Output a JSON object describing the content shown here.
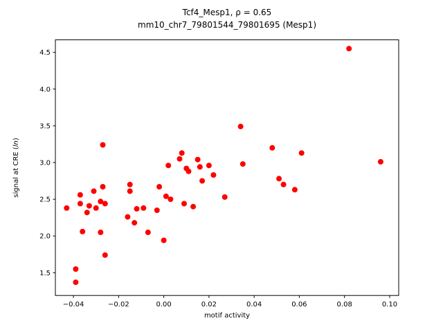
{
  "figure": {
    "title_line1": "Tcf4_Mesp1, ρ = 0.65",
    "title_line2": "mm10_chr7_79801544_79801695 (Mesp1)",
    "xlabel": "motif activity",
    "ylabel_prefix": "signal at CRE (",
    "ylabel_italic": "ln",
    "ylabel_suffix": ")"
  },
  "chart_data": {
    "type": "scatter",
    "title": "Tcf4_Mesp1, ρ = 0.65\nmm10_chr7_79801544_79801695 (Mesp1)",
    "xlabel": "motif activity",
    "ylabel": "signal at CRE (ln)",
    "rho": 0.65,
    "marker_color": "#ff0000",
    "axis_color": "#000000",
    "legend": "none",
    "grid": false,
    "xlim": [
      -0.048,
      0.104
    ],
    "ylim": [
      1.19,
      4.67
    ],
    "xticks": [
      -0.04,
      -0.02,
      0.0,
      0.02,
      0.04,
      0.06,
      0.08,
      0.1
    ],
    "xtick_labels": [
      "−0.04",
      "−0.02",
      "0.00",
      "0.02",
      "0.04",
      "0.06",
      "0.08",
      "0.10"
    ],
    "yticks": [
      1.5,
      2.0,
      2.5,
      3.0,
      3.5,
      4.0,
      4.5
    ],
    "ytick_labels": [
      "1.5",
      "2.0",
      "2.5",
      "3.0",
      "3.5",
      "4.0",
      "4.5"
    ],
    "points": [
      [
        -0.043,
        2.38
      ],
      [
        -0.039,
        1.55
      ],
      [
        -0.039,
        1.37
      ],
      [
        -0.037,
        2.56
      ],
      [
        -0.037,
        2.44
      ],
      [
        -0.036,
        2.06
      ],
      [
        -0.034,
        2.32
      ],
      [
        -0.033,
        2.41
      ],
      [
        -0.031,
        2.61
      ],
      [
        -0.03,
        2.38
      ],
      [
        -0.028,
        2.47
      ],
      [
        -0.028,
        2.05
      ],
      [
        -0.027,
        3.24
      ],
      [
        -0.027,
        2.67
      ],
      [
        -0.026,
        2.44
      ],
      [
        -0.026,
        1.74
      ],
      [
        -0.016,
        2.26
      ],
      [
        -0.015,
        2.61
      ],
      [
        -0.015,
        2.7
      ],
      [
        -0.013,
        2.18
      ],
      [
        -0.012,
        2.37
      ],
      [
        -0.009,
        2.38
      ],
      [
        -0.007,
        2.05
      ],
      [
        -0.003,
        2.35
      ],
      [
        -0.002,
        2.67
      ],
      [
        0.0,
        1.94
      ],
      [
        0.001,
        2.54
      ],
      [
        0.002,
        2.96
      ],
      [
        0.003,
        2.5
      ],
      [
        0.007,
        3.05
      ],
      [
        0.008,
        3.13
      ],
      [
        0.009,
        2.44
      ],
      [
        0.01,
        2.92
      ],
      [
        0.011,
        2.88
      ],
      [
        0.013,
        2.4
      ],
      [
        0.015,
        3.04
      ],
      [
        0.016,
        2.94
      ],
      [
        0.017,
        2.75
      ],
      [
        0.02,
        2.96
      ],
      [
        0.022,
        2.83
      ],
      [
        0.027,
        2.53
      ],
      [
        0.034,
        3.49
      ],
      [
        0.035,
        2.98
      ],
      [
        0.048,
        3.2
      ],
      [
        0.051,
        2.78
      ],
      [
        0.053,
        2.7
      ],
      [
        0.058,
        2.63
      ],
      [
        0.061,
        3.13
      ],
      [
        0.082,
        4.55
      ],
      [
        0.096,
        3.01
      ]
    ]
  }
}
